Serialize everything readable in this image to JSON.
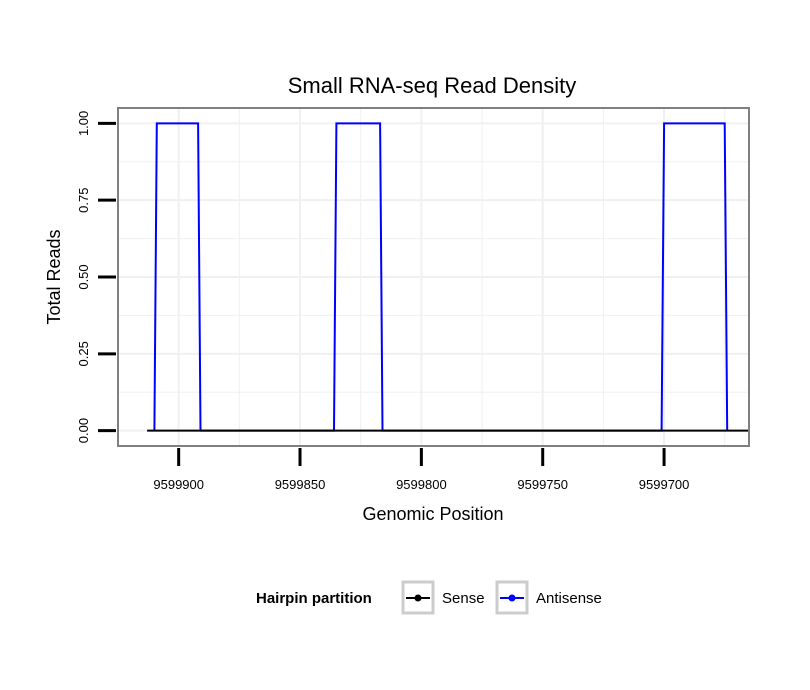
{
  "chart_data": {
    "type": "line",
    "title": "Small RNA-seq Read Density",
    "xlabel": "Genomic Position",
    "ylabel": "Total Reads",
    "x_reversed": true,
    "xlim": [
      9599925,
      9599665
    ],
    "ylim": [
      -0.05,
      1.05
    ],
    "x_ticks": [
      9599900,
      9599850,
      9599800,
      9599750,
      9599700
    ],
    "x_tick_labels": [
      "9599900",
      "9599850",
      "9599800",
      "9599750",
      "9599700"
    ],
    "y_ticks": [
      0,
      0.25,
      0.5,
      0.75,
      1.0
    ],
    "y_tick_labels": [
      "0.00",
      "0.25",
      "0.50",
      "0.75",
      "1.00"
    ],
    "grid": true,
    "legend_position": "bottom",
    "legend_title": "Hairpin partition",
    "series": [
      {
        "name": "Sense",
        "color": "#000000",
        "x": [
          9599913,
          9599665
        ],
        "y": [
          0,
          0
        ]
      },
      {
        "name": "Antisense",
        "color": "#0000ff",
        "x": [
          9599910,
          9599909,
          9599892,
          9599891,
          9599836,
          9599835,
          9599817,
          9599816,
          9599701,
          9599700,
          9599675,
          9599674
        ],
        "y": [
          0,
          1,
          1,
          0,
          0,
          1,
          1,
          0,
          0,
          1,
          1,
          0
        ]
      }
    ]
  }
}
